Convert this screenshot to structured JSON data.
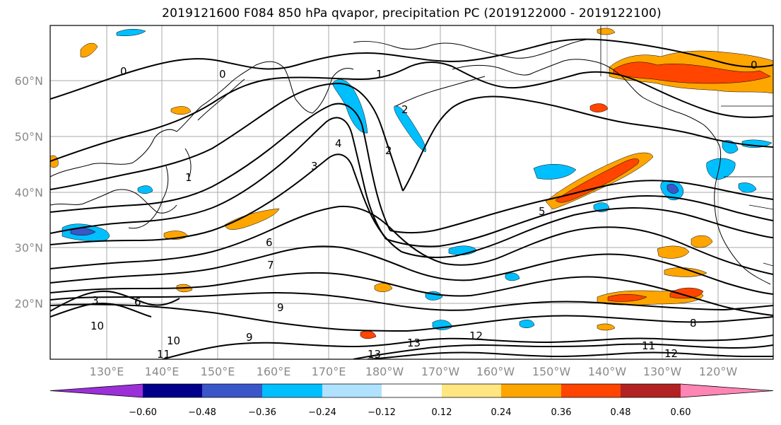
{
  "title": "2019121600 F084 850 hPa qvapor, precipitation PC (2019122000 - 2019122100)",
  "map": {
    "lat_labels": [
      "60°N",
      "50°N",
      "40°N",
      "30°N",
      "20°N"
    ],
    "lon_labels": [
      "130°E",
      "140°E",
      "150°E",
      "160°E",
      "170°E",
      "180°W",
      "170°W",
      "160°W",
      "150°W",
      "140°W",
      "130°W",
      "120°W"
    ],
    "contour_labels": [
      "0",
      "0",
      "0",
      "1",
      "1",
      "2",
      "2",
      "3",
      "4",
      "5",
      "6",
      "7",
      "8",
      "9",
      "9",
      "10",
      "10",
      "11",
      "11",
      "12",
      "12",
      "13",
      "13",
      "3",
      "6"
    ],
    "gridline_color": "#9e9e9e",
    "contour_color": "#000000"
  },
  "colorbar": {
    "ticks": [
      "−0.60",
      "−0.48",
      "−0.36",
      "−0.24",
      "−0.12",
      "0.12",
      "0.24",
      "0.36",
      "0.48",
      "0.60"
    ],
    "colors": [
      "#9b30d9",
      "#00008b",
      "#3a56c8",
      "#00bfff",
      "#b0e2ff",
      "#ffffff",
      "#ffe680",
      "#ffa500",
      "#ff4500",
      "#b22222",
      "#ff85b5"
    ]
  }
}
